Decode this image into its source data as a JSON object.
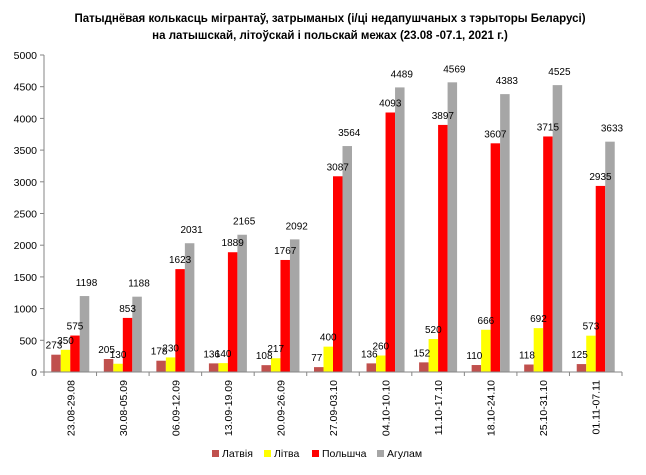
{
  "chart_data": {
    "type": "bar",
    "title_line1": "Патыднёвая колькасць мігрантаў, затрыманых (і/ці недапушчаных з тэрыторы Беларусі)",
    "title_line2": "на латышскай, літоўскай і польскай межах (23.08 -07.1, 2021 г.)",
    "categories": [
      "23.08-29.08",
      "30.08-05.09",
      "06.09-12.09",
      "13.09-19.09",
      "20.09-26.09",
      "27.09-03.10",
      "04.10-10.10",
      "11.10-17.10",
      "18.10-24.10",
      "25.10-31.10",
      "01.11-07.11"
    ],
    "series": [
      {
        "name": "Латвія",
        "color": "#c0504d",
        "values": [
          273,
          205,
          178,
          136,
          108,
          77,
          136,
          152,
          110,
          118,
          125
        ]
      },
      {
        "name": "Літва",
        "color": "#ffff00",
        "values": [
          350,
          130,
          230,
          140,
          217,
          400,
          260,
          520,
          666,
          692,
          573
        ]
      },
      {
        "name": "Польшча",
        "color": "#ff0000",
        "values": [
          575,
          853,
          1623,
          1889,
          1767,
          3087,
          4093,
          3897,
          3607,
          3715,
          2935
        ]
      },
      {
        "name": "Агулам",
        "color": "#a6a6a6",
        "values": [
          1198,
          1188,
          2031,
          2165,
          2092,
          3564,
          4489,
          4569,
          4383,
          4525,
          3633
        ]
      }
    ],
    "ylim": [
      0,
      5000
    ],
    "yticks": [
      "0",
      "500",
      "1000",
      "1500",
      "2000",
      "2500",
      "3000",
      "3500",
      "4000",
      "4500",
      "5000"
    ],
    "grid": false,
    "legend_position": "bottom"
  }
}
